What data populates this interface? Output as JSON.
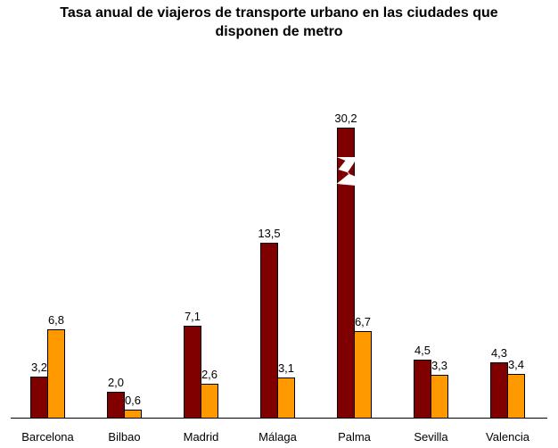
{
  "chart_data": {
    "type": "bar",
    "title_line1": "Tasa anual de viajeros de transporte urbano en las ciudades que",
    "title_line2": "disponen de metro",
    "categories": [
      "Barcelona",
      "Bilbao",
      "Madrid",
      "Málaga",
      "Palma",
      "Sevilla",
      "Valencia"
    ],
    "series": [
      {
        "values": [
          3.2,
          2.0,
          7.1,
          13.5,
          30.2,
          4.5,
          4.3
        ],
        "color": "#800000"
      },
      {
        "values": [
          6.8,
          0.6,
          2.6,
          3.1,
          6.7,
          3.3,
          3.4
        ],
        "color": "#FF9900"
      }
    ],
    "value_labels": [
      [
        "3,2",
        "2,0",
        "7,1",
        "13,5",
        "30,2",
        "4,5",
        "4,3"
      ],
      [
        "6,8",
        "0,6",
        "2,6",
        "3,1",
        "6,7",
        "3,3",
        "3,4"
      ]
    ],
    "broken_axis": true,
    "legend": "none",
    "grid": false
  }
}
